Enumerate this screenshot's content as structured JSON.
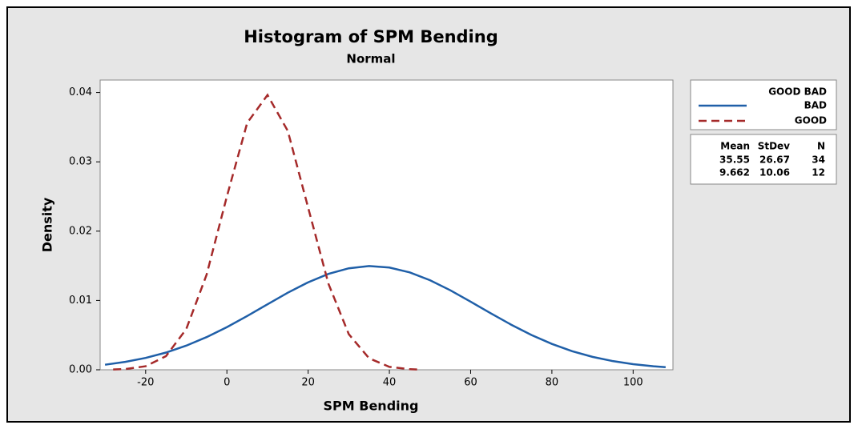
{
  "chart_data": {
    "type": "line",
    "title": "Histogram of SPM Bending",
    "subtitle": "Normal",
    "x_label": "SPM Bending",
    "y_label": "Density",
    "legend_title": "GOOD BAD",
    "xlim": [
      -31.2,
      109.8
    ],
    "ylim": [
      0,
      0.0418
    ],
    "xticks": [
      -20,
      0,
      20,
      40,
      60,
      80,
      100
    ],
    "yticks": [
      {
        "value": 0,
        "label": "0.00"
      },
      {
        "value": 0.01,
        "label": "0.01"
      },
      {
        "value": 0.02,
        "label": "0.02"
      },
      {
        "value": 0.03,
        "label": "0.03"
      },
      {
        "value": 0.04,
        "label": "0.04"
      }
    ],
    "series": [
      {
        "name": "BAD",
        "color": "#1f5fa8",
        "dash": "solid",
        "x": [
          -30,
          -25,
          -20,
          -15,
          -10,
          -5,
          0,
          5,
          10,
          15,
          20,
          25,
          30,
          35,
          40,
          45,
          50,
          55,
          60,
          65,
          70,
          75,
          80,
          85,
          90,
          95,
          100,
          105,
          108
        ],
        "values": [
          0.00073,
          0.00114,
          0.00171,
          0.00248,
          0.00348,
          0.00471,
          0.00615,
          0.00776,
          0.00945,
          0.01112,
          0.01262,
          0.01383,
          0.01464,
          0.01496,
          0.01475,
          0.01405,
          0.01292,
          0.01147,
          0.00982,
          0.00813,
          0.0065,
          0.00501,
          0.00373,
          0.00268,
          0.00186,
          0.00125,
          0.00081,
          0.0005,
          0.00037
        ]
      },
      {
        "name": "GOOD",
        "color": "#a52a2a",
        "dash": "dashed",
        "x": [
          -28,
          -25,
          -20,
          -15,
          -10,
          -5,
          0,
          5,
          10,
          15,
          20,
          25,
          30,
          35,
          40,
          45,
          47
        ],
        "values": [
          4e-05,
          0.0001,
          0.00051,
          0.00196,
          0.00587,
          0.01371,
          0.02501,
          0.03562,
          0.03964,
          0.03445,
          0.02339,
          0.01241,
          0.00514,
          0.00166,
          0.00042,
          8e-05,
          4e-05
        ]
      }
    ],
    "stats_table": {
      "columns": [
        "Mean",
        "StDev",
        "N"
      ],
      "rows": [
        [
          "35.55",
          "26.67",
          "34"
        ],
        [
          "9.662",
          "10.06",
          "12"
        ]
      ]
    }
  }
}
